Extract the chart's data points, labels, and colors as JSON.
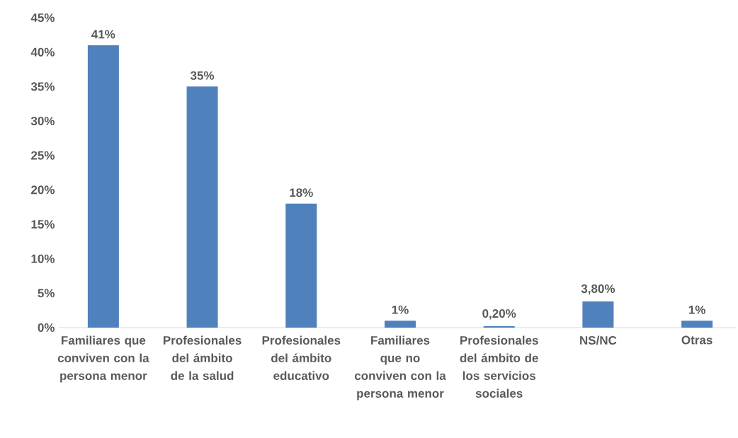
{
  "chart_data": {
    "type": "bar",
    "categories": [
      "Familiares que conviven con la persona menor",
      "Profesionales del ámbito de la salud",
      "Profesionales del ámbito educativo",
      "Familiares que no conviven con la persona menor",
      "Profesionales del ámbito de los servicios sociales",
      "NS/NC",
      "Otras"
    ],
    "values": [
      41,
      35,
      18,
      1,
      0.2,
      3.8,
      1
    ],
    "value_labels": [
      "41%",
      "35%",
      "18%",
      "1%",
      "0,20%",
      "3,80%",
      "1%"
    ],
    "color": "#4f81bd",
    "ylim": [
      0,
      45
    ],
    "yticks": [
      {
        "value": 0,
        "label": "0%"
      },
      {
        "value": 5,
        "label": "5%"
      },
      {
        "value": 10,
        "label": "10%"
      },
      {
        "value": 15,
        "label": "15%"
      },
      {
        "value": 20,
        "label": "20%"
      },
      {
        "value": 25,
        "label": "25%"
      },
      {
        "value": 30,
        "label": "30%"
      },
      {
        "value": 35,
        "label": "35%"
      },
      {
        "value": 40,
        "label": "40%"
      },
      {
        "value": 45,
        "label": "45%"
      }
    ]
  }
}
